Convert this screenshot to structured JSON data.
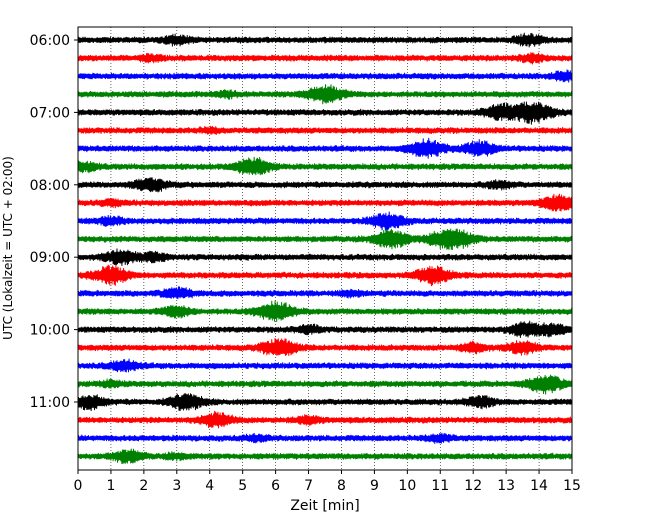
{
  "chart_data": {
    "type": "line",
    "title": "",
    "xlabel": "Zeit  [min]",
    "ylabel": "UTC (Lokalzeit = UTC + 02:00)",
    "xlim": [
      0,
      15
    ],
    "x_ticks": [
      "0",
      "1",
      "2",
      "3",
      "4",
      "5",
      "6",
      "7",
      "8",
      "9",
      "10",
      "11",
      "12",
      "13",
      "14",
      "15"
    ],
    "y_tick_labels": [
      "06:00",
      "07:00",
      "08:00",
      "09:00",
      "10:00",
      "11:00"
    ],
    "grid": "vertical dotted",
    "trace_colors": [
      "#000000",
      "#ff0000",
      "#0000ff",
      "#008000"
    ],
    "traces": [
      {
        "start": "06:00",
        "color": "#000000",
        "events": [
          [
            3.0,
            0.5
          ],
          [
            13.7,
            0.6
          ]
        ]
      },
      {
        "start": "06:15",
        "color": "#ff0000",
        "events": [
          [
            2.2,
            0.3
          ],
          [
            13.8,
            0.4
          ]
        ]
      },
      {
        "start": "06:30",
        "color": "#0000ff",
        "events": [
          [
            14.8,
            0.5
          ]
        ]
      },
      {
        "start": "06:45",
        "color": "#008000",
        "events": [
          [
            7.5,
            1.0
          ],
          [
            4.5,
            0.3
          ]
        ]
      },
      {
        "start": "07:00",
        "color": "#000000",
        "events": [
          [
            12.8,
            0.8
          ],
          [
            13.8,
            1.2
          ]
        ]
      },
      {
        "start": "07:15",
        "color": "#ff0000",
        "events": [
          [
            4.0,
            0.2
          ]
        ]
      },
      {
        "start": "07:30",
        "color": "#0000ff",
        "events": [
          [
            10.6,
            1.0
          ],
          [
            12.2,
            0.8
          ]
        ]
      },
      {
        "start": "07:45",
        "color": "#008000",
        "events": [
          [
            5.3,
            1.0
          ],
          [
            0.2,
            0.5
          ]
        ]
      },
      {
        "start": "08:00",
        "color": "#000000",
        "events": [
          [
            2.2,
            0.8
          ],
          [
            12.8,
            0.4
          ]
        ]
      },
      {
        "start": "08:15",
        "color": "#ff0000",
        "events": [
          [
            14.6,
            0.9
          ],
          [
            1.0,
            0.3
          ]
        ]
      },
      {
        "start": "08:30",
        "color": "#0000ff",
        "events": [
          [
            9.4,
            0.9
          ],
          [
            1.0,
            0.4
          ]
        ]
      },
      {
        "start": "08:45",
        "color": "#008000",
        "events": [
          [
            9.5,
            1.0
          ],
          [
            11.5,
            1.0
          ],
          [
            10.9,
            0.6
          ]
        ]
      },
      {
        "start": "09:00",
        "color": "#000000",
        "events": [
          [
            1.3,
            0.8
          ],
          [
            2.3,
            0.5
          ]
        ]
      },
      {
        "start": "09:15",
        "color": "#ff0000",
        "events": [
          [
            1.0,
            1.0
          ],
          [
            10.8,
            1.0
          ]
        ]
      },
      {
        "start": "09:30",
        "color": "#0000ff",
        "events": [
          [
            3.0,
            0.6
          ],
          [
            8.3,
            0.3
          ]
        ]
      },
      {
        "start": "09:45",
        "color": "#008000",
        "events": [
          [
            6.0,
            1.1
          ],
          [
            3.0,
            0.6
          ]
        ]
      },
      {
        "start": "10:00",
        "color": "#000000",
        "events": [
          [
            13.6,
            0.8
          ],
          [
            14.4,
            0.6
          ],
          [
            7.0,
            0.4
          ]
        ]
      },
      {
        "start": "10:15",
        "color": "#ff0000",
        "events": [
          [
            6.1,
            1.0
          ],
          [
            13.5,
            0.7
          ],
          [
            12.0,
            0.5
          ]
        ]
      },
      {
        "start": "10:30",
        "color": "#0000ff",
        "events": [
          [
            1.4,
            0.6
          ]
        ]
      },
      {
        "start": "10:45",
        "color": "#008000",
        "events": [
          [
            14.2,
            1.0
          ],
          [
            1.0,
            0.3
          ]
        ]
      },
      {
        "start": "11:00",
        "color": "#000000",
        "events": [
          [
            0.3,
            0.8
          ],
          [
            3.3,
            0.9
          ],
          [
            12.2,
            0.6
          ]
        ]
      },
      {
        "start": "11:15",
        "color": "#ff0000",
        "events": [
          [
            4.2,
            0.8
          ],
          [
            7.0,
            0.4
          ]
        ]
      },
      {
        "start": "11:30",
        "color": "#0000ff",
        "events": [
          [
            11.0,
            0.4
          ],
          [
            5.4,
            0.3
          ]
        ]
      },
      {
        "start": "11:45",
        "color": "#008000",
        "events": [
          [
            1.5,
            0.7
          ],
          [
            3.0,
            0.3
          ]
        ]
      }
    ]
  }
}
